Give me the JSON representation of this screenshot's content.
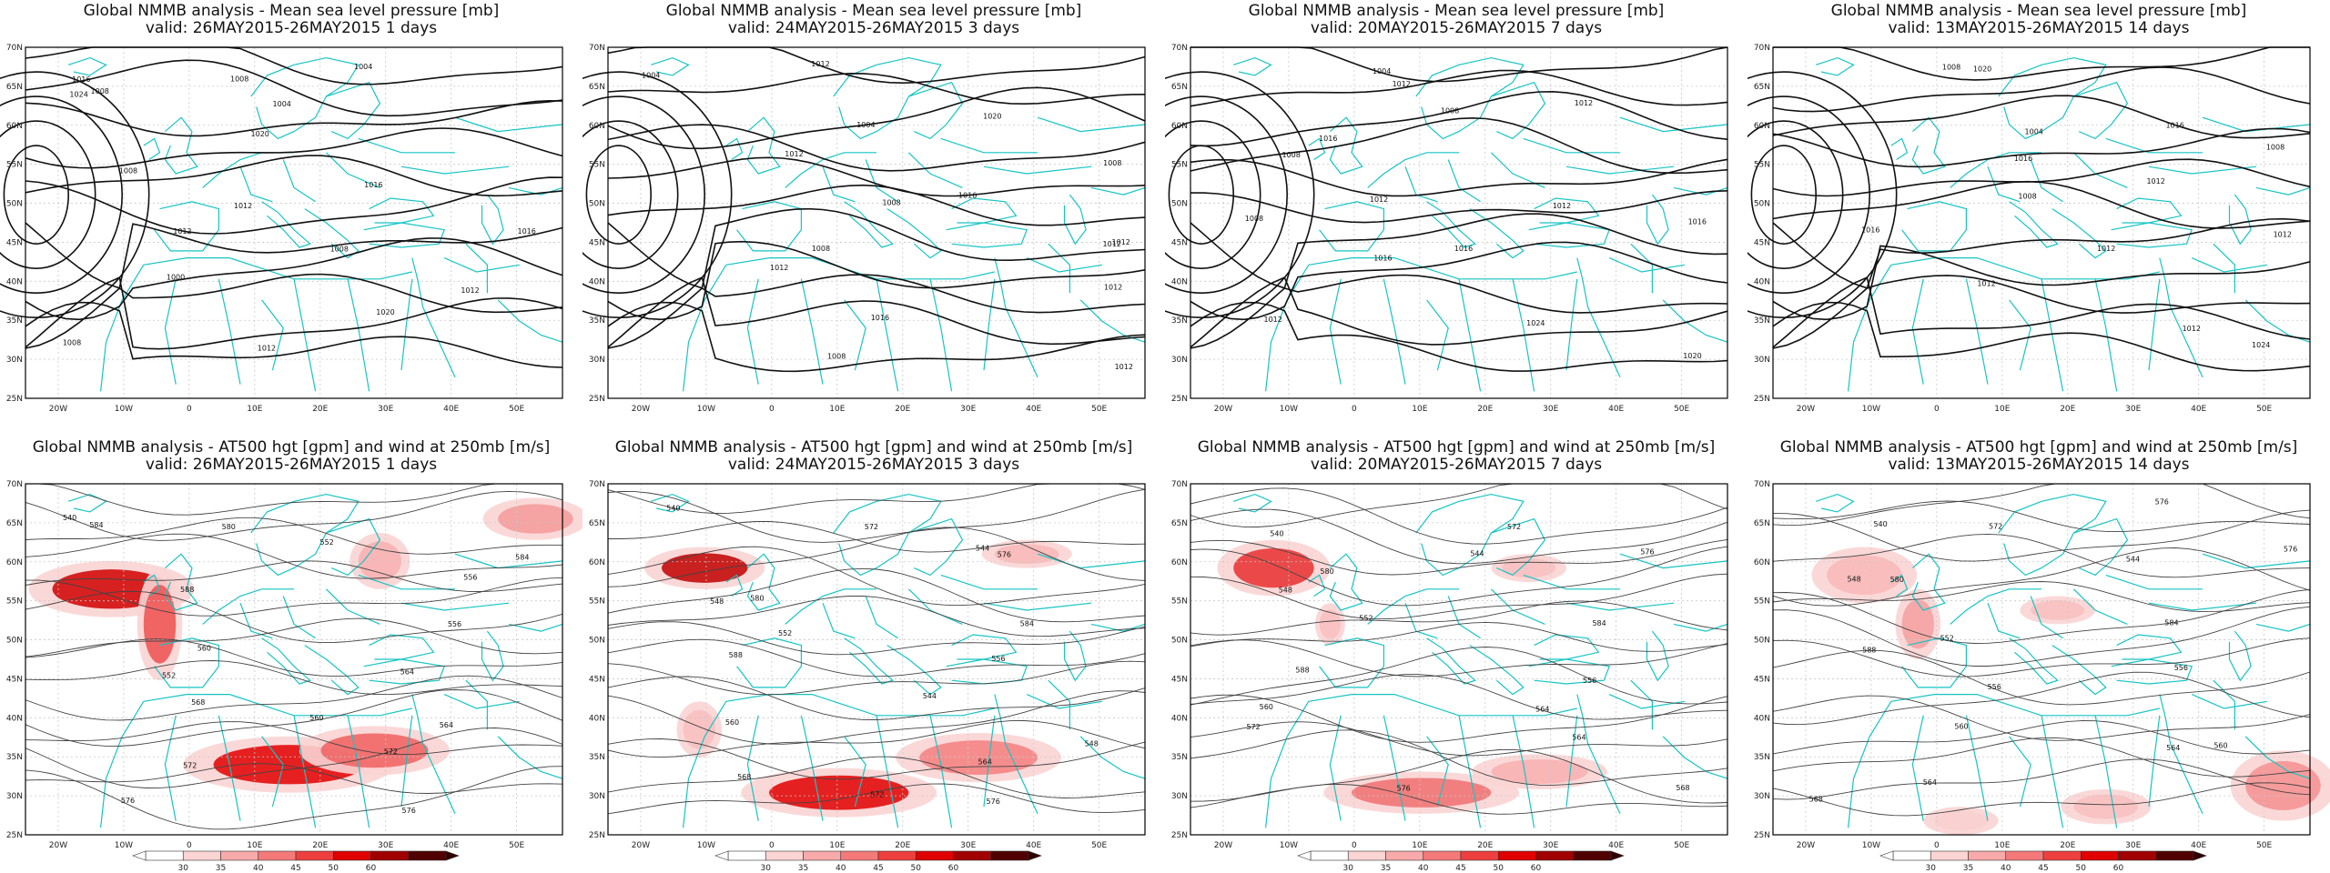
{
  "panels": [
    {
      "title": "Global NMMB analysis - Mean sea level pressure [mb]",
      "subtitle": "valid: 26MAY2015-26MAY2015   1 days",
      "type": "mslp",
      "labels": [
        "1016",
        "1004",
        "1008",
        "1012",
        "1016",
        "1000",
        "1020",
        "1008",
        "1008",
        "1024",
        "1020",
        "1016",
        "1012",
        "1008",
        "1012",
        "1012",
        "1004",
        "1008"
      ]
    },
    {
      "title": "Global NMMB analysis - Mean sea level pressure [mb]",
      "subtitle": "valid: 24MAY2015-26MAY2015   3 days",
      "type": "mslp",
      "labels": [
        "1004",
        "1004",
        "1008",
        "1008",
        "1012",
        "1012",
        "1016",
        "1012",
        "1012",
        "1020",
        "1012",
        "1016",
        "1012",
        "1008",
        "1012",
        "1008"
      ]
    },
    {
      "title": "Global NMMB analysis - Mean sea level pressure [mb]",
      "subtitle": "valid: 20MAY2015-26MAY2015   7 days",
      "type": "mslp",
      "labels": [
        "1004",
        "1008",
        "1008",
        "1012",
        "1016",
        "1016",
        "1024",
        "1020",
        "1012",
        "1012",
        "1016",
        "1012",
        "1008",
        "1016",
        "1012"
      ]
    },
    {
      "title": "Global NMMB analysis - Mean sea level pressure [mb]",
      "subtitle": "valid: 13MAY2015-26MAY2015   14 days",
      "type": "mslp",
      "labels": [
        "1008",
        "1004",
        "1008",
        "1008",
        "1012",
        "1012",
        "1012",
        "1024",
        "1020",
        "1016",
        "1016",
        "1012",
        "1016",
        "1012"
      ]
    },
    {
      "title": "Global NMMB analysis - AT500 hgt [gpm] and wind at 250mb [m/s]",
      "subtitle": "valid: 26MAY2015-26MAY2015   1 days",
      "type": "z500",
      "labels": [
        "540",
        "552",
        "556",
        "560",
        "564",
        "568",
        "572",
        "576",
        "580",
        "584",
        "588",
        "556",
        "552",
        "560",
        "564",
        "572",
        "576",
        "584"
      ]
    },
    {
      "title": "Global NMMB analysis - AT500 hgt [gpm] and wind at 250mb [m/s]",
      "subtitle": "valid: 24MAY2015-26MAY2015   3 days",
      "type": "z500",
      "labels": [
        "540",
        "544",
        "548",
        "552",
        "556",
        "560",
        "564",
        "568",
        "572",
        "576",
        "580",
        "584",
        "588",
        "544",
        "548",
        "572",
        "576"
      ]
    },
    {
      "title": "Global NMMB analysis - AT500 hgt [gpm] and wind at 250mb [m/s]",
      "subtitle": "valid: 20MAY2015-26MAY2015   7 days",
      "type": "z500",
      "labels": [
        "540",
        "544",
        "548",
        "552",
        "556",
        "560",
        "564",
        "568",
        "572",
        "576",
        "580",
        "584",
        "588",
        "564",
        "572",
        "576"
      ]
    },
    {
      "title": "Global NMMB analysis - AT500 hgt [gpm] and wind at 250mb [m/s]",
      "subtitle": "valid: 13MAY2015-26MAY2015   14 days",
      "type": "z500",
      "labels": [
        "540",
        "544",
        "548",
        "552",
        "556",
        "560",
        "564",
        "568",
        "572",
        "576",
        "580",
        "584",
        "588",
        "556",
        "560",
        "564",
        "576"
      ]
    }
  ],
  "axes": {
    "lat_labels": [
      "70N",
      "65N",
      "60N",
      "55N",
      "50N",
      "45N",
      "40N",
      "35N",
      "30N",
      "25N"
    ],
    "lon_labels": [
      "20W",
      "10W",
      "0",
      "10E",
      "20E",
      "30E",
      "40E",
      "50E"
    ]
  },
  "colorbar": {
    "ticks": [
      "30",
      "35",
      "40",
      "45",
      "50",
      "60"
    ],
    "colors": [
      "#ffffff",
      "#fbd4d4",
      "#f8aaaa",
      "#f47a7a",
      "#ee3f3f",
      "#e00000",
      "#a00000",
      "#500000"
    ]
  }
}
